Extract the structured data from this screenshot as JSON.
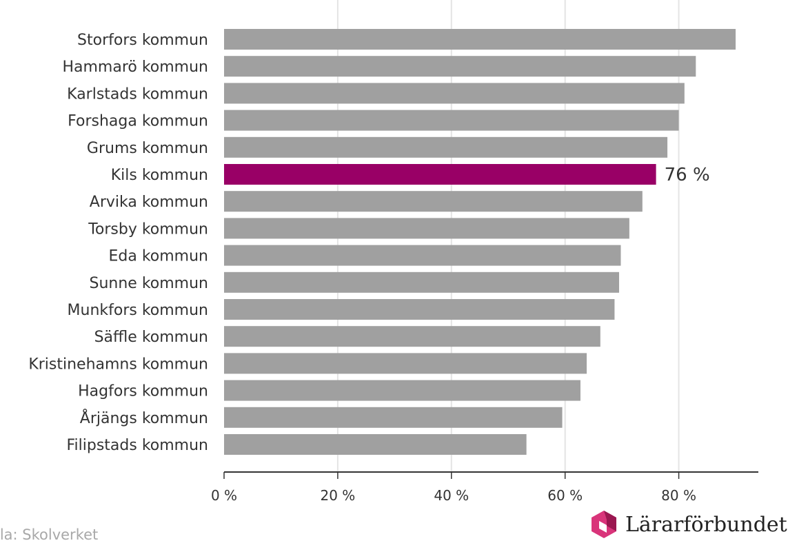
{
  "chart_data": {
    "type": "bar",
    "orientation": "horizontal",
    "categories": [
      "Storfors kommun",
      "Hammarö kommun",
      "Karlstads kommun",
      "Forshaga kommun",
      "Grums kommun",
      "Kils kommun",
      "Arvika kommun",
      "Torsby kommun",
      "Eda kommun",
      "Sunne kommun",
      "Munkfors kommun",
      "Säffle kommun",
      "Kristinehamns kommun",
      "Hagfors kommun",
      "Årjängs kommun",
      "Filipstads kommun"
    ],
    "values": [
      90,
      83,
      81,
      80,
      78,
      76,
      73.6,
      71.3,
      69.8,
      69.5,
      68.7,
      66.2,
      63.8,
      62.7,
      59.5,
      53.2
    ],
    "highlight": {
      "category": "Kils kommun",
      "color": "#990066",
      "label": "76 %"
    },
    "bar_color": "#a0a0a0",
    "xlim": [
      0,
      94
    ],
    "xticks": [
      0,
      20,
      40,
      60,
      80
    ],
    "xtick_labels": [
      "0 %",
      "20 %",
      "40 %",
      "60 %",
      "80 %"
    ],
    "grid": true
  },
  "footer": {
    "source": "lla: Skolverket",
    "brand": "Lärarförbundet"
  },
  "colors": {
    "bar": "#a0a0a0",
    "highlight": "#990066",
    "grid": "#e4e4e4",
    "axis": "#333333",
    "logo_pink": "#d9347a",
    "logo_dark": "#9a1750"
  }
}
